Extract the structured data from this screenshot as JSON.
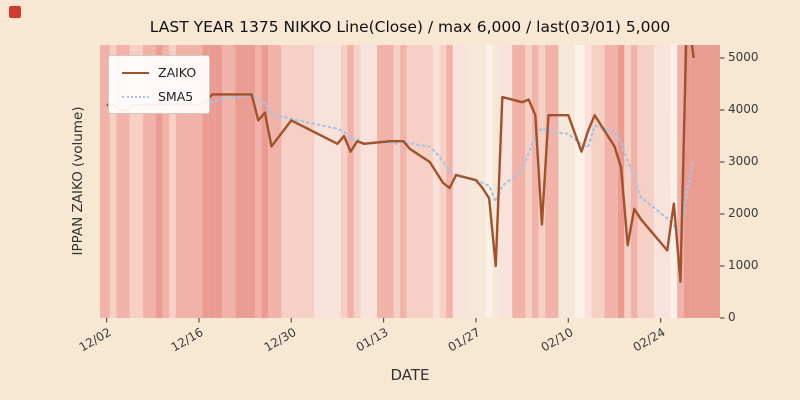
{
  "title": "LAST YEAR 1375 NIKKO Line(Close) / max 6,000 / last(03/01) 5,000",
  "axes": {
    "x_label": "DATE",
    "y_label": "IPPAN ZAIKO (volume)"
  },
  "legend": {
    "position": "upper-left",
    "items": [
      "ZAIKO",
      "SMA5"
    ]
  },
  "colors": {
    "figure_bg": "#f7e7d3",
    "zaiko_line": "#a0522d",
    "sma5_line": "#a9c4e2",
    "tick_text": "#3a3a3a"
  },
  "chart_data": {
    "type": "line",
    "title": "LAST YEAR 1375 NIKKO Line(Close) / max 6,000 / last(03/01) 5,000",
    "xlabel": "DATE",
    "ylabel": "IPPAN ZAIKO (volume)",
    "x_ticks": [
      "12/02",
      "12/16",
      "12/30",
      "01/13",
      "01/27",
      "02/10",
      "02/24"
    ],
    "y_ticks": [
      0,
      1000,
      2000,
      3000,
      4000,
      5000
    ],
    "ylim": [
      0,
      5250
    ],
    "grid": false,
    "legend_position": "upper-left",
    "max_value": 6000,
    "last_value": 5000,
    "last_date": "03/01",
    "x": [
      "12/02",
      "12/03",
      "12/04",
      "12/05",
      "12/06",
      "12/09",
      "12/10",
      "12/11",
      "12/12",
      "12/13",
      "12/16",
      "12/17",
      "12/18",
      "12/19",
      "12/20",
      "12/23",
      "12/24",
      "12/25",
      "12/26",
      "12/27",
      "12/30",
      "01/06",
      "01/07",
      "01/08",
      "01/09",
      "01/10",
      "01/14",
      "01/15",
      "01/16",
      "01/17",
      "01/20",
      "01/21",
      "01/22",
      "01/23",
      "01/24",
      "01/27",
      "01/28",
      "01/29",
      "01/30",
      "01/31",
      "02/03",
      "02/04",
      "02/05",
      "02/06",
      "02/07",
      "02/10",
      "02/12",
      "02/13",
      "02/14",
      "02/17",
      "02/18",
      "02/19",
      "02/20",
      "02/21",
      "02/25",
      "02/26",
      "02/27",
      "02/28",
      "03/01"
    ],
    "series": [
      {
        "name": "ZAIKO",
        "color": "#a0522d",
        "style": "solid",
        "values": [
          4100,
          4100,
          4000,
          4000,
          4100,
          4100,
          4100,
          4100,
          4100,
          4100,
          4100,
          4150,
          4300,
          4300,
          4300,
          4300,
          4300,
          3800,
          3950,
          3300,
          3800,
          3350,
          3500,
          3200,
          3400,
          3350,
          3400,
          3400,
          3400,
          3250,
          3000,
          2800,
          2600,
          2500,
          2750,
          2650,
          2500,
          2300,
          1000,
          4250,
          4150,
          4200,
          3900,
          1800,
          3900,
          3900,
          3200,
          3600,
          3900,
          3300,
          2900,
          1400,
          2100,
          1900,
          1300,
          2200,
          700,
          6000,
          5000
        ]
      },
      {
        "name": "SMA5",
        "color": "#a9c4e2",
        "style": "dotted",
        "values": [
          null,
          null,
          null,
          null,
          4060,
          4060,
          4060,
          4080,
          4100,
          4100,
          4100,
          4110,
          4150,
          4190,
          4230,
          4270,
          4300,
          4200,
          4130,
          3930,
          3830,
          3640,
          3580,
          3430,
          3450,
          3360,
          3370,
          3350,
          3390,
          3360,
          3290,
          3170,
          3010,
          2830,
          2730,
          2660,
          2600,
          2540,
          2240,
          2540,
          2840,
          3180,
          3500,
          3660,
          3590,
          3540,
          3340,
          3280,
          3700,
          3580,
          3380,
          3020,
          2720,
          2320,
          1920,
          1780,
          1640,
          2420,
          3040
        ]
      }
    ],
    "background_bands": [
      "#f1b3a9",
      "#f6cfc5",
      "#f1b3a9",
      "#f1b3a9",
      "#f6cfc5",
      "#f1b3a9",
      "#ea9b92",
      "#f1b3a9",
      "#f6cfc5",
      "#f1b3a9",
      "#f1b3a9",
      "#ea9b92",
      "#ea9b92",
      "#ea9b92",
      "#f1b3a9",
      "#ea9b92",
      "#ea9b92",
      "#f1b3a9",
      "#ea9b92",
      "#f1b3a9",
      "#f6cfc5",
      "#fae2dc",
      "#f6cfc5",
      "#f1b3a9",
      "#f6cfc5",
      "#fae2dc",
      "#f1b3a9",
      "#f6cfc5",
      "#f1b3a9",
      "#f6cfc5",
      "#f6cfc5",
      "#fae2dc",
      "#f6cfc5",
      "#f1b3a9",
      "#fae2dc",
      "#f5e8d9",
      "#f5e8d9",
      "#fbf1e8",
      "#f5e8d9",
      "#fae2dc",
      "#f1b3a9",
      "#f6cfc5",
      "#f1b3a9",
      "#f6cfc5",
      "#f1b3a9",
      "#f5e8d9",
      "#fbf1e8",
      "#fae2dc",
      "#f6cfc5",
      "#f1b3a9",
      "#ea9b92",
      "#f6cfc5",
      "#f1b3a9",
      "#f6cfc5",
      "#fae2dc",
      "#fbf1e8",
      "#f1b3a9",
      "#ea9b92",
      "#ea9b92"
    ]
  }
}
